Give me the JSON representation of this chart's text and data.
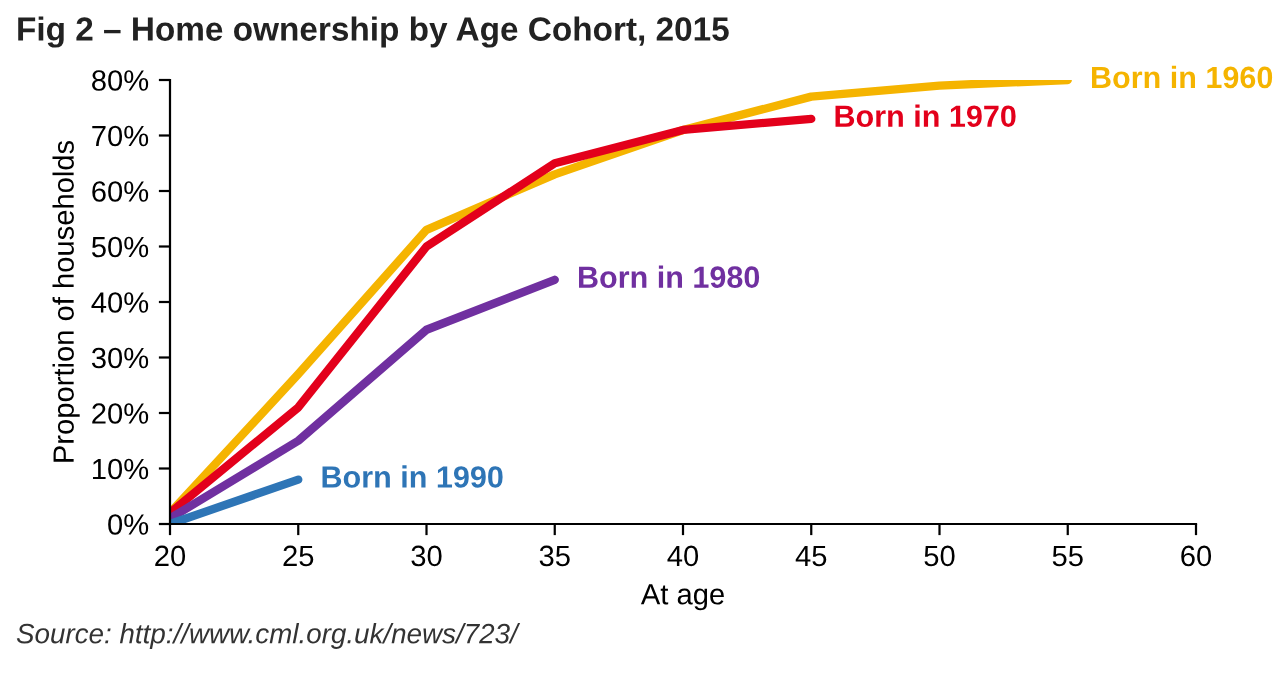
{
  "chart_data": {
    "type": "line",
    "title": "Fig 2 – Home ownership by Age Cohort, 2015",
    "xlabel": "At age",
    "ylabel": "Proportion of households",
    "x": [
      20,
      25,
      30,
      35,
      40,
      45,
      50,
      55
    ],
    "series": [
      {
        "name": "Born in 1960",
        "color": "#f5b400",
        "values": [
          2,
          27,
          53,
          63,
          71,
          77,
          79,
          80
        ]
      },
      {
        "name": "Born in 1970",
        "color": "#e3001b",
        "values": [
          2,
          21,
          50,
          65,
          71,
          73,
          null,
          null
        ]
      },
      {
        "name": "Born in 1980",
        "color": "#7030a0",
        "values": [
          1,
          15,
          35,
          44,
          null,
          null,
          null,
          null
        ]
      },
      {
        "name": "Born in 1990",
        "color": "#2e75b6",
        "values": [
          0,
          8,
          null,
          null,
          null,
          null,
          null,
          null
        ]
      }
    ],
    "xlim": [
      20,
      60
    ],
    "xticks": [
      20,
      25,
      30,
      35,
      40,
      45,
      50,
      55,
      60
    ],
    "ylim": [
      0,
      80
    ],
    "yticks": [
      {
        "value": 0,
        "label": "0%"
      },
      {
        "value": 10,
        "label": "10%"
      },
      {
        "value": 20,
        "label": "20%"
      },
      {
        "value": 30,
        "label": "30%"
      },
      {
        "value": 40,
        "label": "40%"
      },
      {
        "value": 50,
        "label": "50%"
      },
      {
        "value": 60,
        "label": "60%"
      },
      {
        "value": 70,
        "label": "70%"
      },
      {
        "value": 80,
        "label": "80%"
      }
    ],
    "grid": false,
    "legend": false,
    "marker": "none",
    "line_style": "solid",
    "annotations": [
      "Source: http://www.cml.org.uk/news/723/"
    ]
  }
}
